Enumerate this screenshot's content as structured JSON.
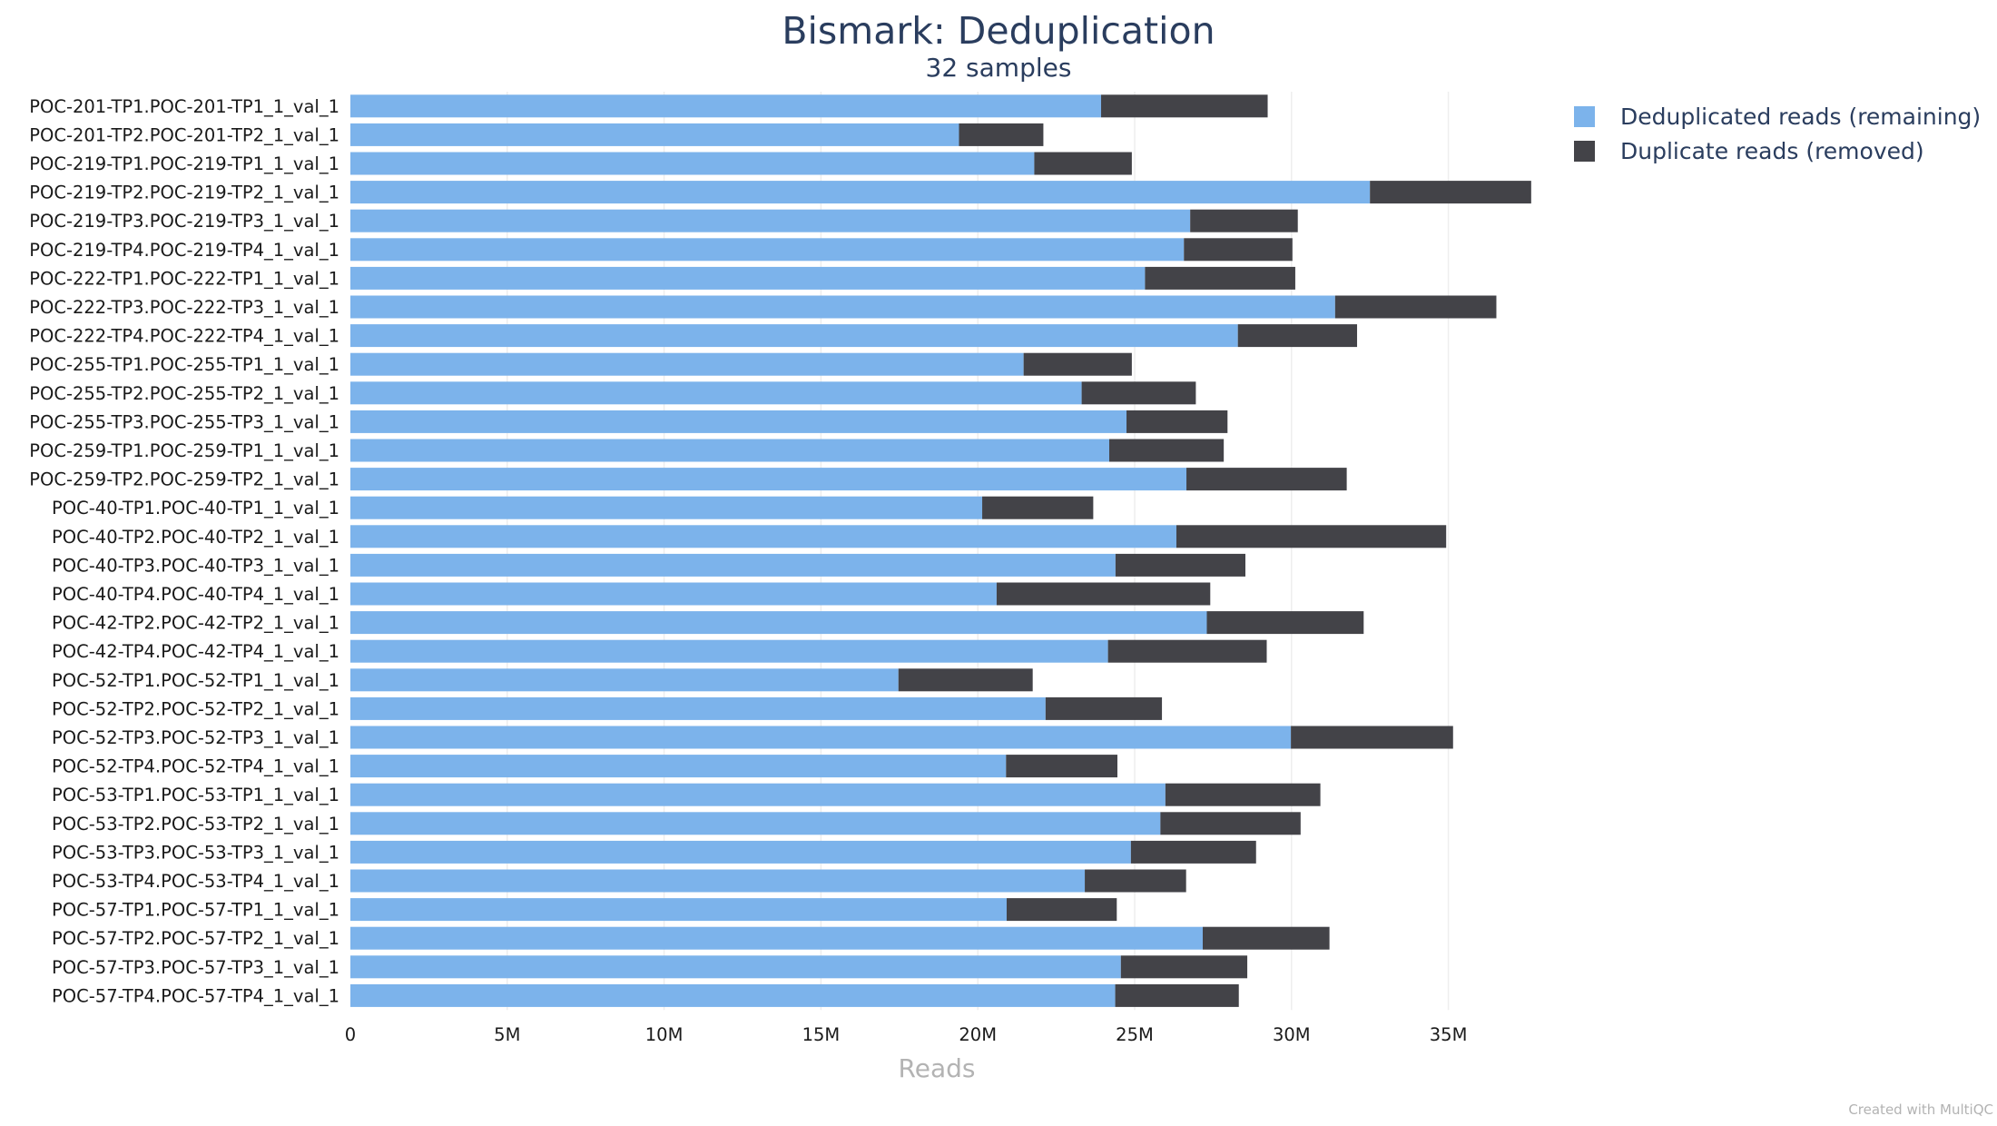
{
  "chart_data": {
    "type": "bar",
    "orientation": "horizontal",
    "stacked": true,
    "title": "Bismark: Deduplication",
    "subtitle": "32 samples",
    "xlabel": "Reads",
    "xlim": [
      0,
      37500000
    ],
    "xticks": [
      0,
      5000000,
      10000000,
      15000000,
      20000000,
      25000000,
      30000000,
      35000000
    ],
    "xtick_labels": [
      "0",
      "5M",
      "10M",
      "15M",
      "20M",
      "25M",
      "30M",
      "35M"
    ],
    "grid": true,
    "legend_position": "top-right",
    "categories": [
      "POC-201-TP1.POC-201-TP1_1_val_1",
      "POC-201-TP2.POC-201-TP2_1_val_1",
      "POC-219-TP1.POC-219-TP1_1_val_1",
      "POC-219-TP2.POC-219-TP2_1_val_1",
      "POC-219-TP3.POC-219-TP3_1_val_1",
      "POC-219-TP4.POC-219-TP4_1_val_1",
      "POC-222-TP1.POC-222-TP1_1_val_1",
      "POC-222-TP3.POC-222-TP3_1_val_1",
      "POC-222-TP4.POC-222-TP4_1_val_1",
      "POC-255-TP1.POC-255-TP1_1_val_1",
      "POC-255-TP2.POC-255-TP2_1_val_1",
      "POC-255-TP3.POC-255-TP3_1_val_1",
      "POC-259-TP1.POC-259-TP1_1_val_1",
      "POC-259-TP2.POC-259-TP2_1_val_1",
      "POC-40-TP1.POC-40-TP1_1_val_1",
      "POC-40-TP2.POC-40-TP2_1_val_1",
      "POC-40-TP3.POC-40-TP3_1_val_1",
      "POC-40-TP4.POC-40-TP4_1_val_1",
      "POC-42-TP2.POC-42-TP2_1_val_1",
      "POC-42-TP4.POC-42-TP4_1_val_1",
      "POC-52-TP1.POC-52-TP1_1_val_1",
      "POC-52-TP2.POC-52-TP2_1_val_1",
      "POC-52-TP3.POC-52-TP3_1_val_1",
      "POC-52-TP4.POC-52-TP4_1_val_1",
      "POC-53-TP1.POC-53-TP1_1_val_1",
      "POC-53-TP2.POC-53-TP2_1_val_1",
      "POC-53-TP3.POC-53-TP3_1_val_1",
      "POC-53-TP4.POC-53-TP4_1_val_1",
      "POC-57-TP1.POC-57-TP1_1_val_1",
      "POC-57-TP2.POC-57-TP2_1_val_1",
      "POC-57-TP3.POC-57-TP3_1_val_1",
      "POC-57-TP4.POC-57-TP4_1_val_1"
    ],
    "series": [
      {
        "name": "Deduplicated reads (remaining)",
        "color": "#7cb3eb",
        "values": [
          23930000,
          19400000,
          21800000,
          32500000,
          26770000,
          26570000,
          25330000,
          31390000,
          28290000,
          21460000,
          23310000,
          24740000,
          24190000,
          26650000,
          20140000,
          26330000,
          24390000,
          20600000,
          27300000,
          24150000,
          17470000,
          22160000,
          29980000,
          20900000,
          25980000,
          25820000,
          24880000,
          23410000,
          20920000,
          27170000,
          24560000,
          24380000
        ]
      },
      {
        "name": "Duplicate reads (removed)",
        "color": "#434348",
        "values": [
          5310000,
          2690000,
          3110000,
          5140000,
          3430000,
          3460000,
          4790000,
          5140000,
          3800000,
          3450000,
          3640000,
          3220000,
          3650000,
          5110000,
          3540000,
          8600000,
          4140000,
          6810000,
          5000000,
          5060000,
          4280000,
          3710000,
          5170000,
          3550000,
          4940000,
          4470000,
          3990000,
          3230000,
          3510000,
          4040000,
          4030000,
          3940000
        ]
      }
    ]
  },
  "credit": "Created with MultiQC"
}
